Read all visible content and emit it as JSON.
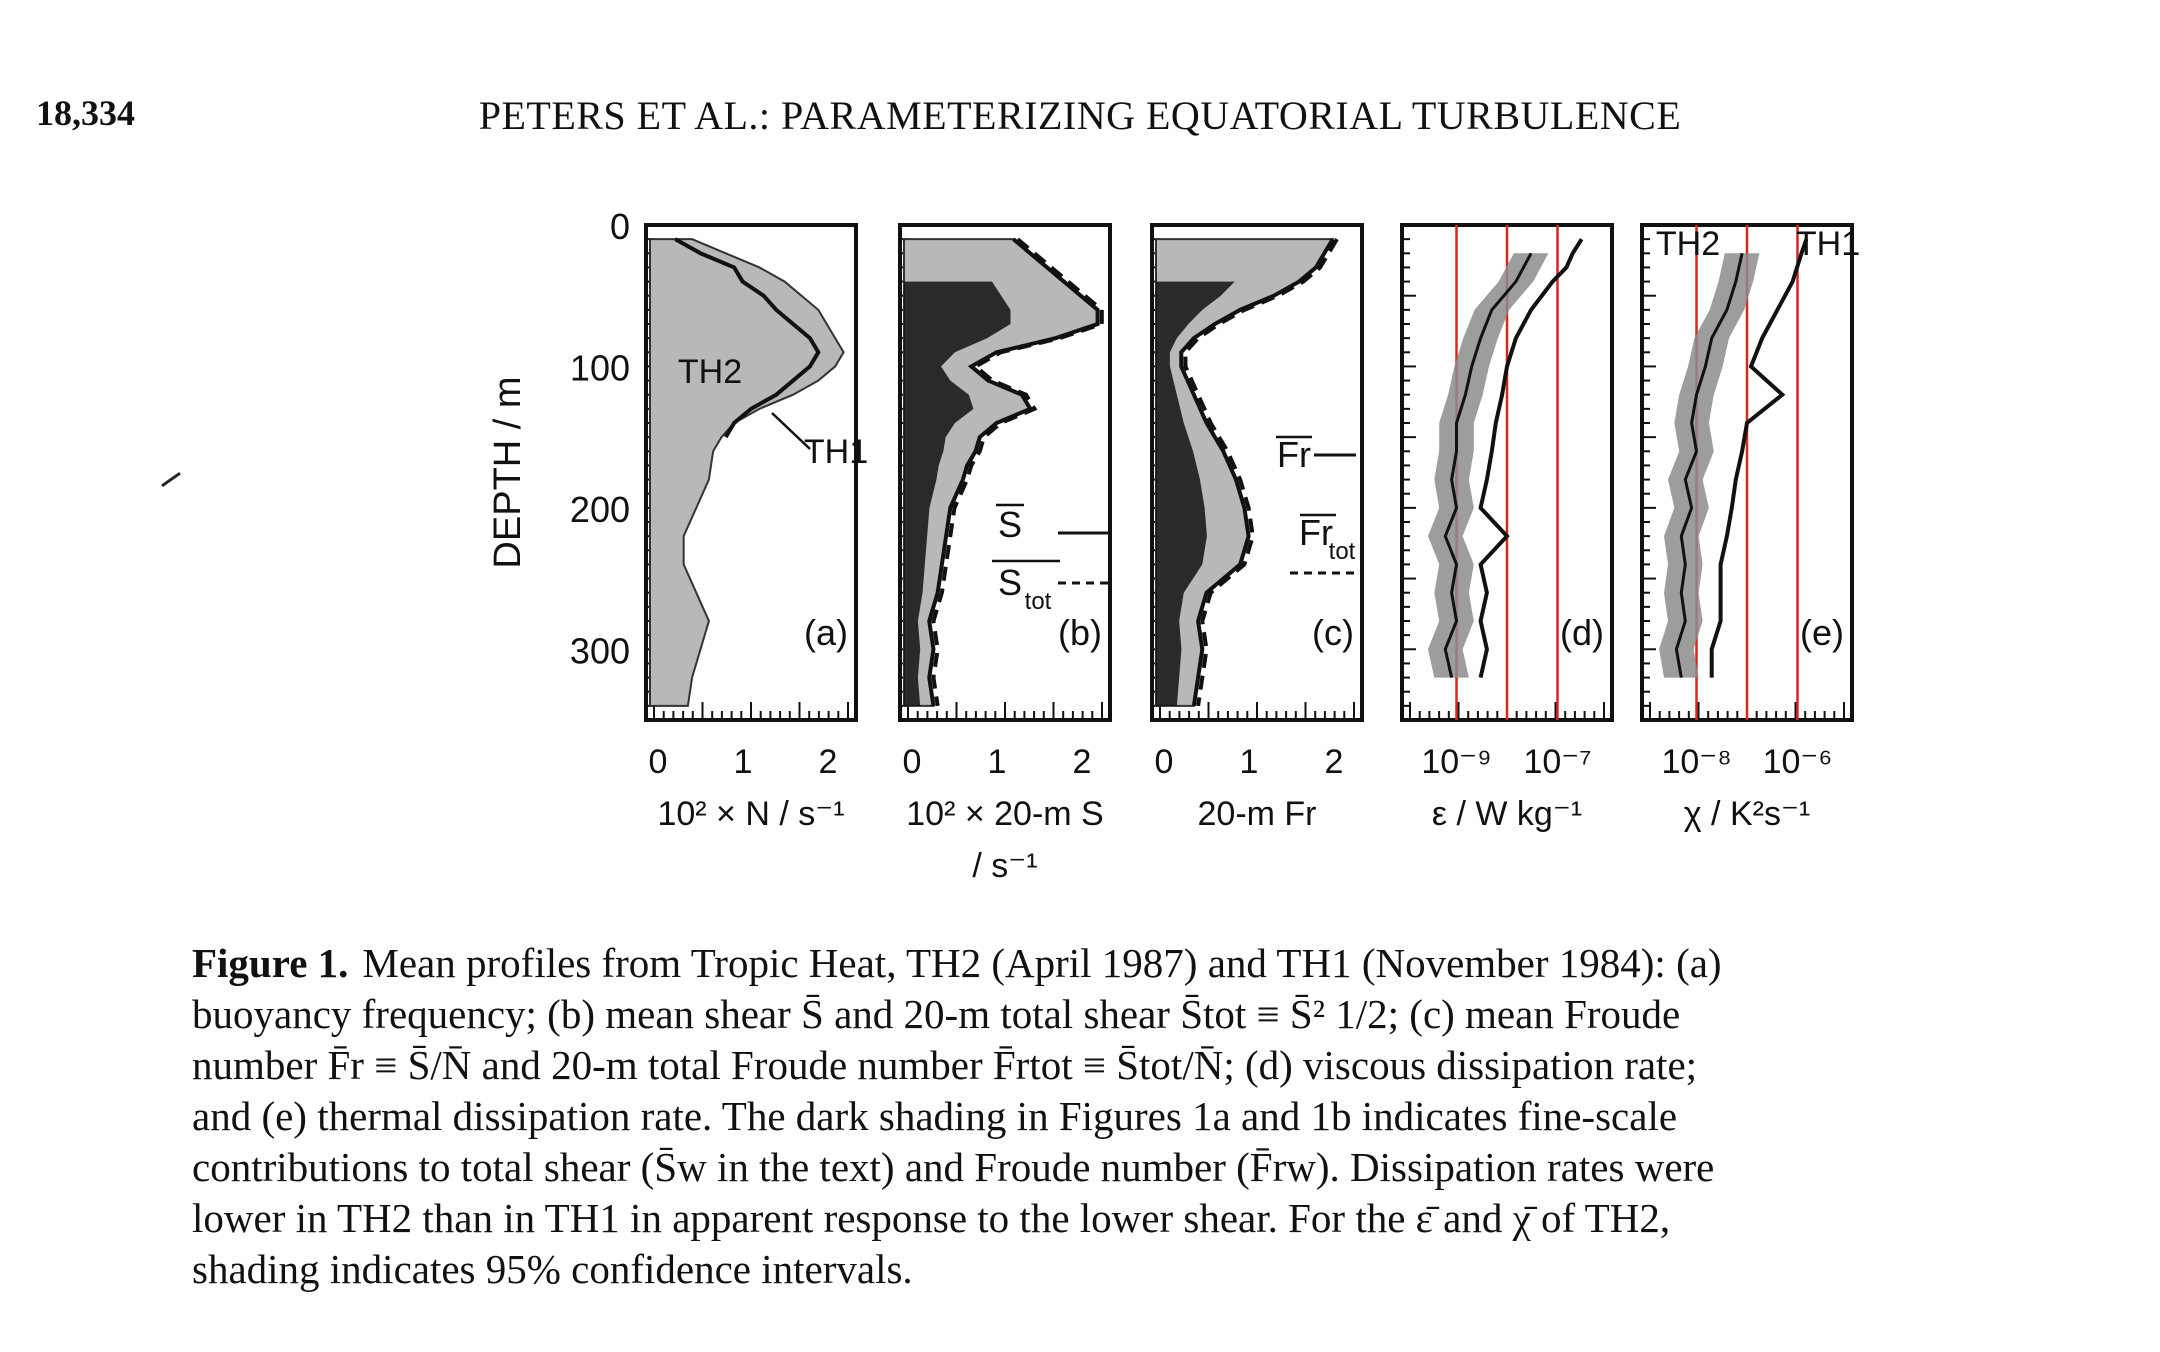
{
  "header": {
    "page_number": "18,334",
    "running_title": "PETERS ET AL.: PARAMETERIZING EQUATORIAL TURBULENCE"
  },
  "figure": {
    "y_axis_label": "DEPTH / m",
    "y_ticks": [
      "0",
      "100",
      "200",
      "300"
    ],
    "panels": [
      {
        "letter": "(a)",
        "x_ticks": [
          "0",
          "1",
          "2"
        ],
        "x_label": "10² × N / s⁻¹",
        "x_label_2": "",
        "annotations": [
          "TH2",
          "TH1"
        ]
      },
      {
        "letter": "(b)",
        "x_ticks": [
          "0",
          "1",
          "2"
        ],
        "x_label": "10² × 20-m S",
        "x_label_2": "/ s⁻¹",
        "annotations": [
          "S",
          "S",
          "tot"
        ]
      },
      {
        "letter": "(c)",
        "x_ticks": [
          "0",
          "1",
          "2"
        ],
        "x_label": "20-m Fr",
        "x_label_2": "",
        "annotations": [
          "Fr",
          "Fr",
          "tot"
        ]
      },
      {
        "letter": "(d)",
        "x_ticks": [
          "10⁻⁹",
          "10⁻⁷"
        ],
        "x_label": "ε / W kg⁻¹",
        "x_label_2": "",
        "annotations": []
      },
      {
        "letter": "(e)",
        "x_ticks": [
          "10⁻⁸",
          "10⁻⁶"
        ],
        "x_label": "χ / K²s⁻¹",
        "x_label_2": "",
        "annotations": [
          "TH2",
          "TH1"
        ]
      }
    ],
    "colors": {
      "shade_light": "#b8b8b8",
      "shade_dark": "#111111",
      "gridline": "#d42a1a"
    }
  },
  "chart_data": [
    {
      "type": "area",
      "panel": "(a)",
      "xlabel": "10² × N / s⁻¹",
      "ylabel": "DEPTH / m",
      "xlim": [
        0,
        2.4
      ],
      "ylim": [
        350,
        0
      ],
      "y_inverted": true,
      "series": [
        {
          "name": "TH2",
          "depth": [
            10,
            20,
            30,
            40,
            50,
            60,
            70,
            80,
            90,
            100,
            110,
            120,
            130,
            140,
            150,
            160,
            180,
            200,
            220,
            240,
            260,
            280,
            300,
            320,
            340
          ],
          "values": [
            0.5,
            0.9,
            1.3,
            1.6,
            1.8,
            2.0,
            2.1,
            2.2,
            2.3,
            2.2,
            2.0,
            1.7,
            1.3,
            1.0,
            0.85,
            0.75,
            0.7,
            0.55,
            0.4,
            0.4,
            0.55,
            0.7,
            0.6,
            0.5,
            0.45
          ]
        },
        {
          "name": "TH1",
          "depth": [
            10,
            20,
            30,
            40,
            50,
            60,
            70,
            80,
            90,
            100,
            110,
            120,
            130,
            140,
            150
          ],
          "values": [
            0.3,
            0.6,
            1.0,
            1.1,
            1.35,
            1.5,
            1.7,
            1.9,
            2.0,
            1.9,
            1.7,
            1.5,
            1.2,
            1.0,
            0.9
          ]
        }
      ]
    },
    {
      "type": "line",
      "panel": "(b)",
      "xlabel": "10² × 20-m S / s⁻¹",
      "ylabel": "DEPTH / m",
      "xlim": [
        0,
        2.4
      ],
      "ylim": [
        350,
        0
      ],
      "y_inverted": true,
      "series": [
        {
          "name": "S",
          "depth": [
            10,
            20,
            30,
            40,
            50,
            60,
            70,
            80,
            90,
            100,
            110,
            120,
            130,
            140,
            150,
            160,
            170,
            180,
            200,
            220,
            240,
            260,
            280,
            300,
            320,
            340
          ],
          "values": [
            1.3,
            1.5,
            1.7,
            1.9,
            2.1,
            2.3,
            2.3,
            1.8,
            1.1,
            0.8,
            1.0,
            1.4,
            1.5,
            1.1,
            0.9,
            0.85,
            0.75,
            0.7,
            0.55,
            0.5,
            0.45,
            0.4,
            0.3,
            0.35,
            0.3,
            0.35
          ]
        },
        {
          "name": "S tot",
          "depth": [
            10,
            20,
            30,
            40,
            50,
            60,
            70,
            80,
            90,
            100,
            110,
            120,
            130,
            140,
            150,
            160,
            170,
            180,
            200,
            220,
            240,
            260,
            280,
            300,
            320,
            340
          ],
          "values": [
            1.35,
            1.55,
            1.75,
            1.95,
            2.15,
            2.35,
            2.35,
            1.85,
            1.15,
            0.85,
            1.05,
            1.45,
            1.55,
            1.15,
            0.95,
            0.9,
            0.8,
            0.75,
            0.6,
            0.55,
            0.5,
            0.45,
            0.35,
            0.4,
            0.35,
            0.4
          ]
        }
      ]
    },
    {
      "type": "line",
      "panel": "(c)",
      "xlabel": "20-m Fr",
      "ylabel": "DEPTH / m",
      "xlim": [
        0,
        2.4
      ],
      "ylim": [
        350,
        0
      ],
      "y_inverted": true,
      "series": [
        {
          "name": "Fr",
          "depth": [
            10,
            20,
            30,
            40,
            50,
            60,
            70,
            80,
            90,
            100,
            120,
            140,
            160,
            180,
            200,
            220,
            240,
            260,
            280,
            300,
            320,
            340
          ],
          "values": [
            2.1,
            2.0,
            1.9,
            1.7,
            1.4,
            1.0,
            0.7,
            0.45,
            0.3,
            0.3,
            0.45,
            0.6,
            0.8,
            0.95,
            1.05,
            1.1,
            1.0,
            0.6,
            0.5,
            0.55,
            0.5,
            0.45
          ]
        },
        {
          "name": "Fr tot",
          "depth": [
            10,
            20,
            30,
            40,
            50,
            60,
            70,
            80,
            90,
            100,
            120,
            140,
            160,
            180,
            200,
            220,
            240,
            260,
            280,
            300,
            320,
            340
          ],
          "values": [
            2.15,
            2.05,
            1.95,
            1.75,
            1.45,
            1.05,
            0.75,
            0.5,
            0.35,
            0.35,
            0.5,
            0.65,
            0.85,
            1.0,
            1.1,
            1.15,
            1.05,
            0.65,
            0.55,
            0.6,
            0.55,
            0.5
          ]
        }
      ]
    },
    {
      "type": "line",
      "panel": "(d)",
      "xlabel": "ε / W kg⁻¹",
      "ylabel": "DEPTH / m",
      "x_scale": "log",
      "xlim": [
        1e-10,
        1e-06
      ],
      "ylim": [
        350,
        0
      ],
      "y_inverted": true,
      "series": [
        {
          "name": "TH2",
          "depth": [
            20,
            40,
            60,
            80,
            100,
            120,
            140,
            160,
            180,
            200,
            220,
            240,
            260,
            280,
            300,
            320
          ],
          "values": [
            3e-08,
            1.5e-08,
            5e-09,
            3e-09,
            2e-09,
            1.5e-09,
            1e-09,
            1e-09,
            8e-10,
            1e-09,
            6e-10,
            1e-09,
            8e-10,
            1e-09,
            6e-10,
            8e-10
          ]
        },
        {
          "name": "TH1",
          "depth": [
            10,
            20,
            30,
            40,
            60,
            80,
            100,
            120,
            140,
            160,
            180,
            200,
            220,
            240,
            260,
            280,
            300,
            320
          ],
          "values": [
            3e-07,
            2e-07,
            1.5e-07,
            8e-08,
            3e-08,
            1.5e-08,
            1e-08,
            8e-09,
            6e-09,
            5e-09,
            4e-09,
            3e-09,
            1e-08,
            3e-09,
            4e-09,
            3e-09,
            4e-09,
            3e-09
          ]
        }
      ]
    },
    {
      "type": "line",
      "panel": "(e)",
      "xlabel": "χ / K²s⁻¹",
      "ylabel": "DEPTH / m",
      "x_scale": "log",
      "xlim": [
        1e-09,
        1e-05
      ],
      "ylim": [
        350,
        0
      ],
      "y_inverted": true,
      "series": [
        {
          "name": "TH2",
          "depth": [
            20,
            40,
            60,
            80,
            100,
            120,
            140,
            160,
            180,
            200,
            220,
            240,
            260,
            280,
            300,
            320
          ],
          "values": [
            8e-08,
            6e-08,
            4e-08,
            2e-08,
            1.5e-08,
            1e-08,
            8e-09,
            1e-08,
            6e-09,
            8e-09,
            5e-09,
            6e-09,
            5e-09,
            6e-09,
            4e-09,
            5e-09
          ]
        },
        {
          "name": "TH1",
          "depth": [
            10,
            20,
            40,
            60,
            80,
            100,
            120,
            140,
            160,
            180,
            200,
            220,
            240,
            260,
            280,
            300,
            320
          ],
          "values": [
            1.5e-06,
            1.2e-06,
            8e-07,
            4e-07,
            2e-07,
            1.2e-07,
            5e-07,
            1e-07,
            8e-08,
            6e-08,
            5e-08,
            4e-08,
            3e-08,
            3e-08,
            3e-08,
            2e-08,
            2e-08
          ]
        }
      ]
    }
  ],
  "caption": {
    "label": "Figure 1.",
    "lines": [
      "Mean profiles from Tropic Heat, TH2 (April 1987) and TH1 (November 1984): (a)",
      "buoyancy frequency; (b) mean shear S̄ and 20-m total shear S̄tot ≡ S̄² 1/2; (c) mean Froude",
      "number F̄r ≡ S̄/N̄ and 20-m total Froude number F̄rtot ≡ S̄tot/N̄; (d) viscous dissipation rate;",
      "and (e) thermal dissipation rate. The dark shading in Figures 1a and 1b indicates fine-scale",
      "contributions to total shear (S̄w in the text) and Froude number (F̄rw). Dissipation rates were",
      "lower in TH2 than in TH1 in apparent response to the lower shear. For the ε̄ and χ̄ of TH2,",
      "shading indicates 95% confidence intervals."
    ]
  }
}
